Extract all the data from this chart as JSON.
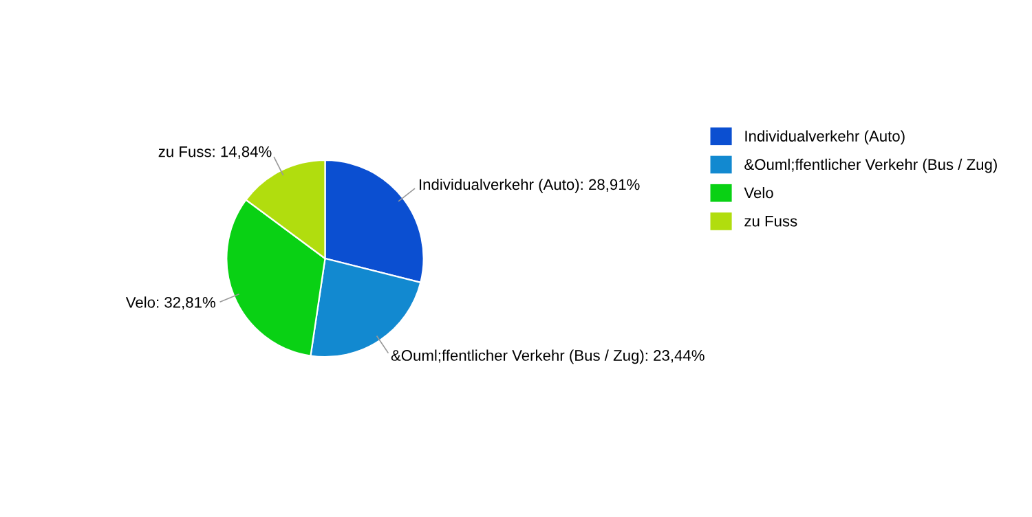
{
  "chart_data": {
    "type": "pie",
    "categories": [
      "Individualverkehr (Auto)",
      "&Ouml;ffentlicher Verkehr (Bus / Zug)",
      "Velo",
      "zu Fuss"
    ],
    "values": [
      28.91,
      23.44,
      32.81,
      14.84
    ],
    "value_labels": [
      "Individualverkehr (Auto): 28,91%",
      "&Ouml;ffentlicher Verkehr (Bus / Zug): 23,44%",
      "Velo: 32,81%",
      "zu Fuss: 14,84%"
    ],
    "colors": [
      "#0b4fd1",
      "#1289d0",
      "#09d114",
      "#b1dd0e"
    ],
    "legend": "right"
  }
}
